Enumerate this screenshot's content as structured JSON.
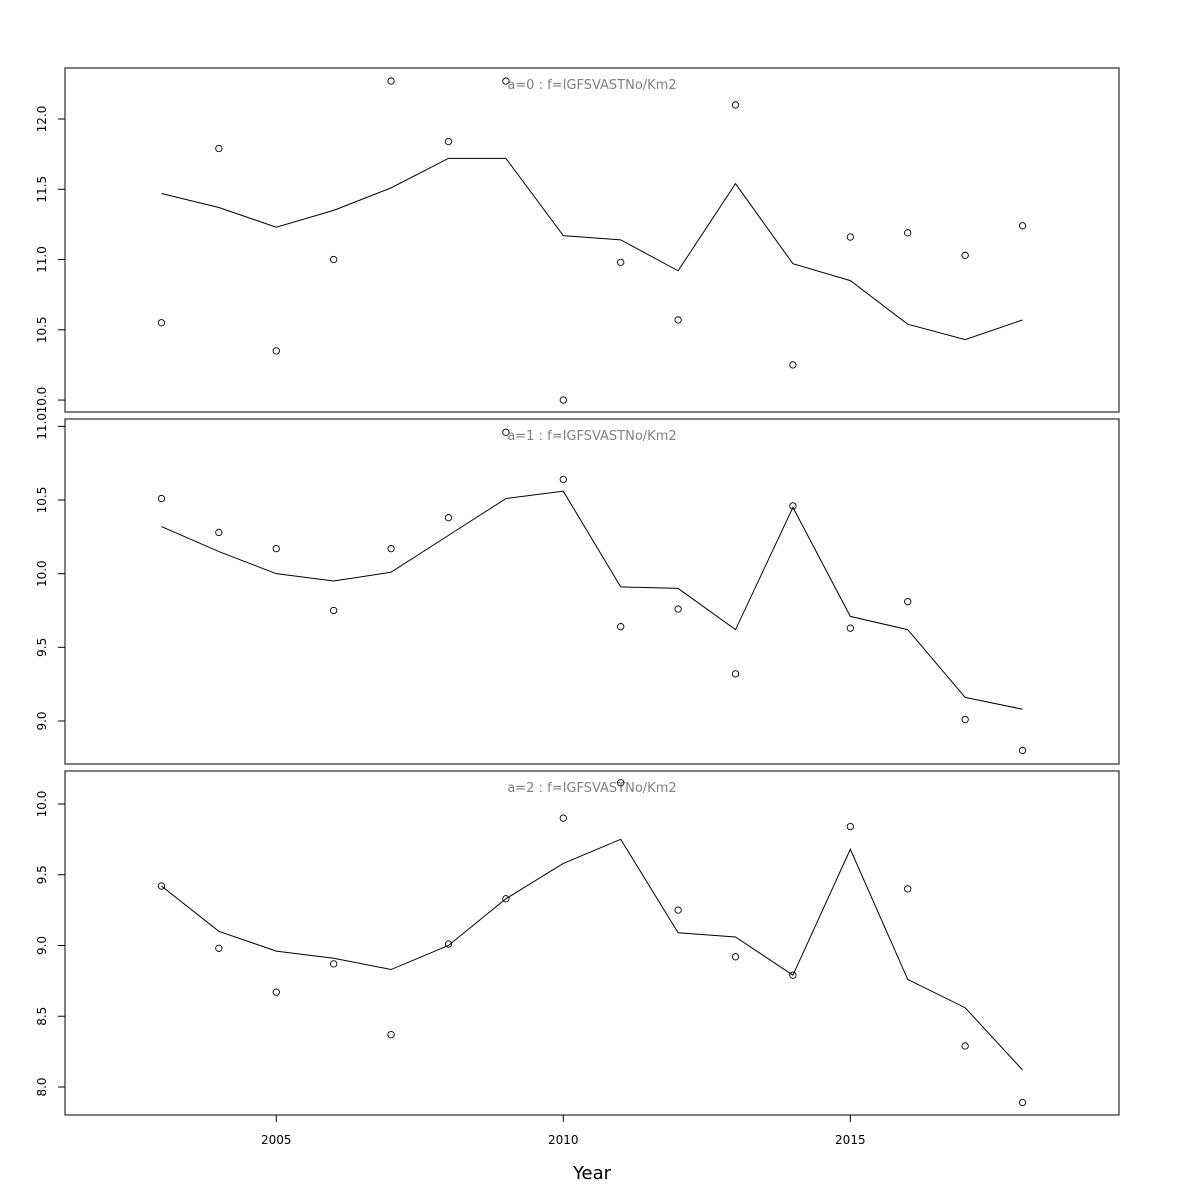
{
  "chart_data": [
    {
      "type": "line",
      "title": "a=0 : f=IGFSVASTNo/Km2",
      "x": [
        2003,
        2004,
        2005,
        2006,
        2007,
        2008,
        2009,
        2010,
        2011,
        2012,
        2013,
        2014,
        2015,
        2016,
        2017,
        2018
      ],
      "series": [
        {
          "style": "points",
          "color": "#000000",
          "values": [
            10.55,
            11.79,
            10.35,
            11.0,
            12.27,
            11.84,
            12.27,
            10.0,
            10.98,
            10.57,
            12.1,
            10.25,
            11.16,
            11.19,
            11.03,
            11.24
          ]
        },
        {
          "style": "line",
          "color": "#000000",
          "values": [
            11.47,
            11.37,
            11.23,
            11.35,
            11.51,
            11.72,
            11.72,
            11.17,
            11.14,
            10.92,
            11.54,
            10.97,
            10.85,
            10.54,
            10.43,
            10.57
          ]
        }
      ],
      "xlim": [
        2001.32,
        2019.68
      ],
      "ylim": [
        9.915,
        12.363
      ],
      "yticks": [
        {
          "value": 10,
          "label": "10.0"
        },
        10.5,
        {
          "value": 11,
          "label": "11.0"
        },
        11.5,
        {
          "value": 12,
          "label": "12.0"
        }
      ]
    },
    {
      "type": "line",
      "title": "a=1 : f=IGFSVASTNo/Km2",
      "x": [
        2003,
        2004,
        2005,
        2006,
        2007,
        2008,
        2009,
        2010,
        2011,
        2012,
        2013,
        2014,
        2015,
        2016,
        2017,
        2018
      ],
      "series": [
        {
          "style": "points",
          "color": "#000000",
          "values": [
            10.51,
            10.28,
            10.17,
            9.75,
            10.17,
            10.38,
            10.96,
            10.64,
            9.64,
            9.76,
            9.32,
            10.46,
            9.63,
            9.81,
            9.01,
            8.8
          ]
        },
        {
          "style": "line",
          "color": "#000000",
          "values": [
            10.32,
            10.15,
            10.0,
            9.95,
            10.01,
            10.26,
            10.51,
            10.56,
            9.91,
            9.9,
            9.62,
            10.45,
            9.71,
            9.62,
            9.16,
            9.08
          ]
        }
      ],
      "xlim": [
        2001.32,
        2019.68
      ],
      "ylim": [
        8.708,
        11.05
      ],
      "yticks": [
        {
          "value": 9,
          "label": "9.0"
        },
        9.5,
        {
          "value": 10,
          "label": "10.0"
        },
        10.5,
        {
          "value": 11,
          "label": "11.0"
        }
      ]
    },
    {
      "type": "line",
      "title": "a=2 : f=IGFSVASTNo/Km2",
      "x": [
        2003,
        2004,
        2005,
        2006,
        2007,
        2008,
        2009,
        2010,
        2011,
        2012,
        2013,
        2014,
        2015,
        2016,
        2017,
        2018
      ],
      "series": [
        {
          "style": "points",
          "color": "#000000",
          "values": [
            9.42,
            8.98,
            8.67,
            8.87,
            8.37,
            9.01,
            9.33,
            9.9,
            10.15,
            9.25,
            8.92,
            8.79,
            9.84,
            9.4,
            8.29,
            7.89
          ]
        },
        {
          "style": "line",
          "color": "#000000",
          "values": [
            9.42,
            9.1,
            8.96,
            8.91,
            8.83,
            9.0,
            9.33,
            9.58,
            9.75,
            9.09,
            9.06,
            8.79,
            9.68,
            8.76,
            8.56,
            8.12
          ]
        }
      ],
      "xlim": [
        2001.32,
        2019.68
      ],
      "ylim": [
        7.802,
        10.233
      ],
      "yticks": [
        {
          "value": 8,
          "label": "8.0"
        },
        8.5,
        {
          "value": 9,
          "label": "9.0"
        },
        9.5,
        {
          "value": 10,
          "label": "10.0"
        }
      ],
      "xticks": [
        2005,
        2010,
        2015
      ],
      "xlabel": "Year"
    }
  ]
}
